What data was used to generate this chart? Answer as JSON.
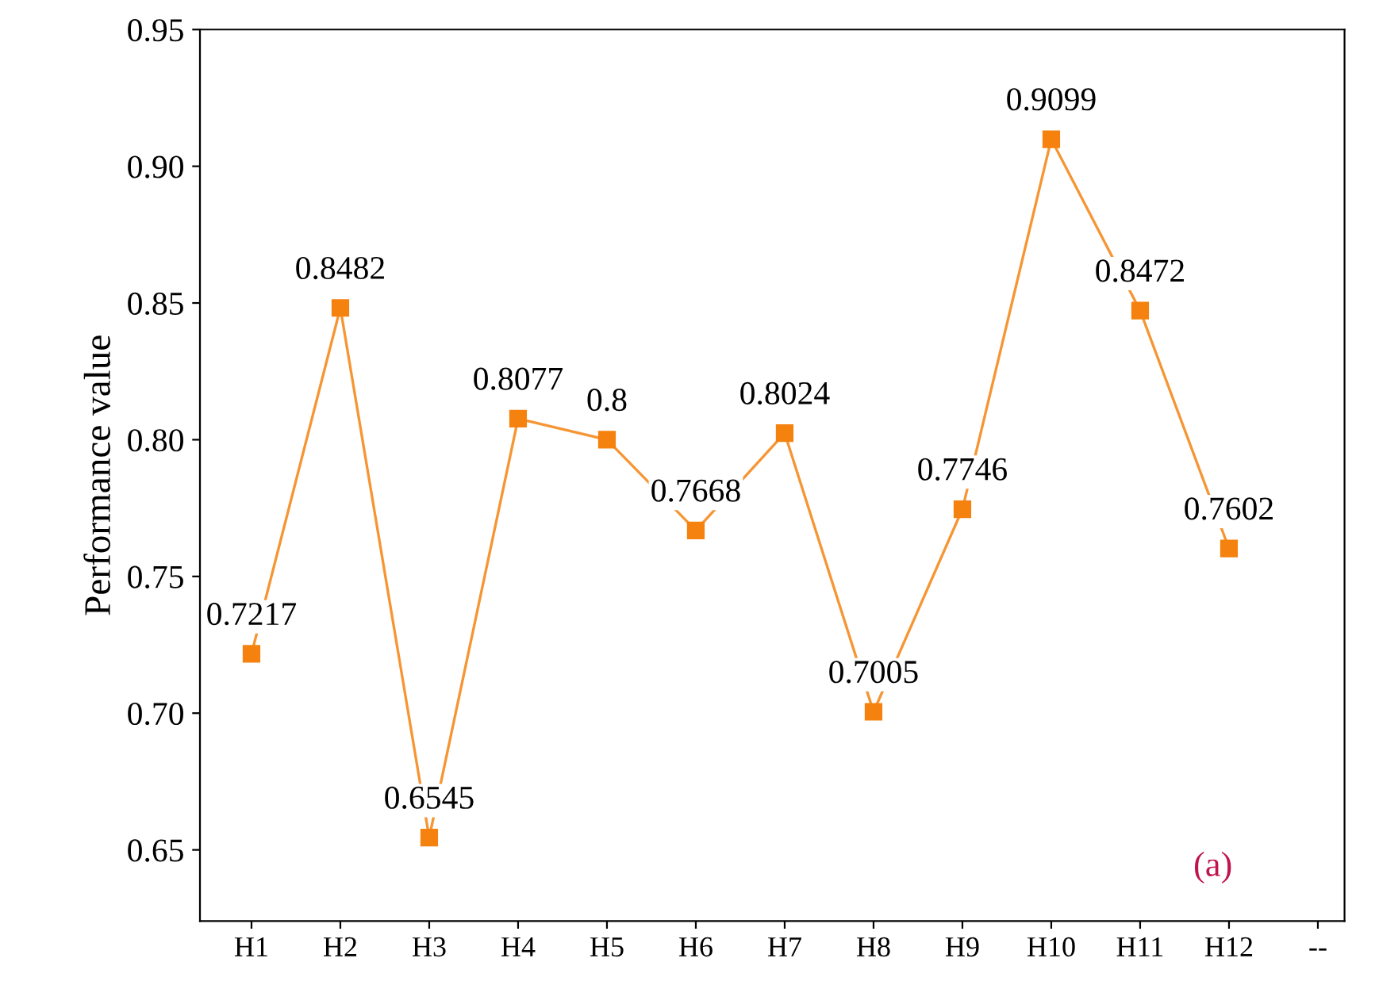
{
  "chart_data": {
    "type": "line",
    "ylabel": "Performance value",
    "categories": [
      "H1",
      "H2",
      "H3",
      "H4",
      "H5",
      "H6",
      "H7",
      "H8",
      "H9",
      "H10",
      "H11",
      "H12",
      "--"
    ],
    "series": [
      {
        "color": "#f5820f",
        "values": [
          0.7217,
          0.8482,
          0.6545,
          0.8077,
          0.8,
          0.7668,
          0.8024,
          0.7005,
          0.7746,
          0.9099,
          0.8472,
          0.7602,
          null
        ]
      }
    ],
    "ylim": [
      0.624,
      0.95
    ],
    "yticks": [
      0.65,
      {
        "value": 0.7,
        "label": "0.70"
      },
      0.75,
      {
        "value": 0.8,
        "label": "0.80"
      },
      0.85,
      {
        "value": 0.9,
        "label": "0.90"
      },
      0.95
    ],
    "data_labels": true,
    "marker": "square",
    "line_style": "solid",
    "grid": false,
    "legend": false,
    "annotations": [
      "(a)"
    ]
  }
}
